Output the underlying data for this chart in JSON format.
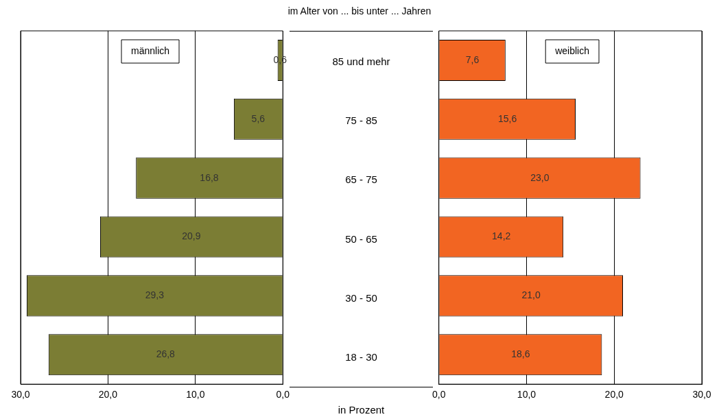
{
  "chart_data": [
    {
      "type": "bar",
      "orientation": "horizontal",
      "title": "im Alter von ... bis unter ... Jahren",
      "annotations": [
        "in Prozent"
      ],
      "categories": [
        "85 und mehr",
        "75 - 85",
        "65 - 75",
        "50 - 65",
        "30 - 50",
        "18 - 30"
      ],
      "series": [
        {
          "name": "männlich",
          "color": "#7b7d34",
          "values": [
            0.6,
            5.6,
            16.8,
            20.9,
            29.3,
            26.8
          ],
          "value_labels": [
            "0,6",
            "5,6",
            "16,8",
            "20,9",
            "29,3",
            "26,8"
          ]
        }
      ],
      "xlim": [
        30,
        0
      ],
      "xticks": [
        {
          "value": 30,
          "label": "30,0"
        },
        {
          "value": 20,
          "label": "20,0"
        },
        {
          "value": 10,
          "label": "10,0"
        },
        {
          "value": 0,
          "label": "0,0"
        }
      ],
      "grid": "x",
      "legend": "top left"
    },
    {
      "type": "bar",
      "orientation": "horizontal",
      "categories": [
        "85 und mehr",
        "75 - 85",
        "65 - 75",
        "50 - 65",
        "30 - 50",
        "18 - 30"
      ],
      "series": [
        {
          "name": "weiblich",
          "color": "#f26522",
          "values": [
            7.6,
            15.6,
            23.0,
            14.2,
            21.0,
            18.6
          ],
          "value_labels": [
            "7,6",
            "15,6",
            "23,0",
            "14,2",
            "21,0",
            "18,6"
          ]
        }
      ],
      "xlim": [
        0,
        30
      ],
      "xticks": [
        {
          "value": 0,
          "label": "0,0"
        },
        {
          "value": 10,
          "label": "10,0"
        },
        {
          "value": 20,
          "label": "20,0"
        },
        {
          "value": 30,
          "label": "30,0"
        }
      ],
      "grid": "x",
      "legend": "top right",
      "tick_labels": "x"
    }
  ]
}
